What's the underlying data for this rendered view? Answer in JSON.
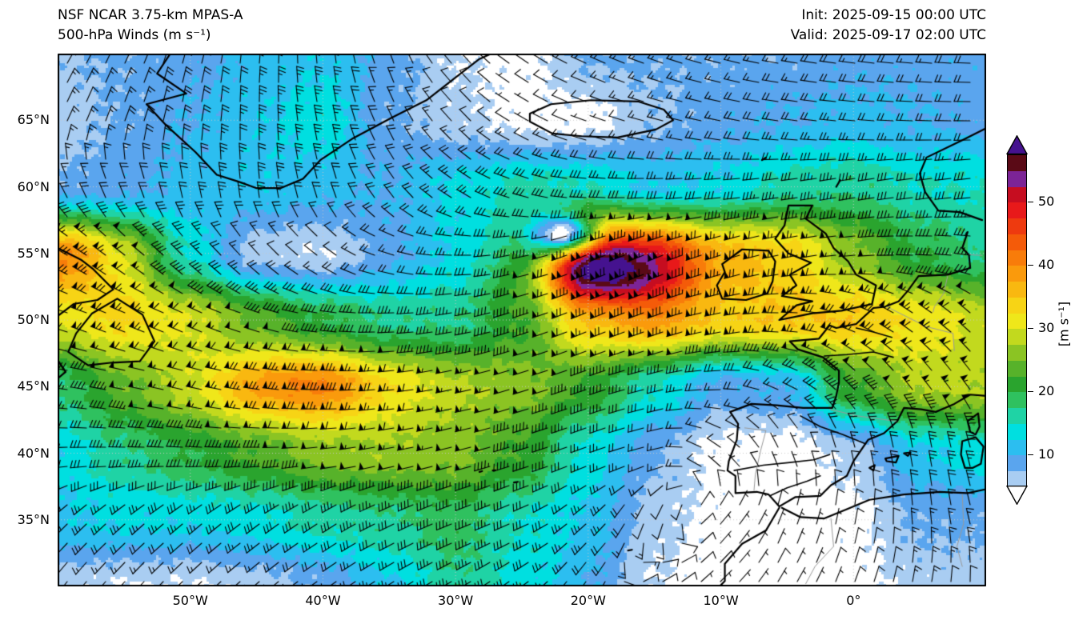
{
  "header": {
    "title_line1": "NSF NCAR 3.75-km MPAS-A",
    "title_line2": "500-hPa Winds (m s⁻¹)",
    "init_label": "Init: 2025-09-15 00:00 UTC",
    "valid_label": "Valid: 2025-09-17 02:00 UTC"
  },
  "axes": {
    "x_ticks": [
      {
        "label": "50°W",
        "lon": -50
      },
      {
        "label": "40°W",
        "lon": -40
      },
      {
        "label": "30°W",
        "lon": -30
      },
      {
        "label": "20°W",
        "lon": -20
      },
      {
        "label": "10°W",
        "lon": -10
      },
      {
        "label": "0°",
        "lon": 0
      }
    ],
    "y_ticks": [
      {
        "label": "65°N",
        "lat": 65
      },
      {
        "label": "60°N",
        "lat": 60
      },
      {
        "label": "55°N",
        "lat": 55
      },
      {
        "label": "50°N",
        "lat": 50
      },
      {
        "label": "45°N",
        "lat": 45
      },
      {
        "label": "40°N",
        "lat": 40
      },
      {
        "label": "35°N",
        "lat": 35
      }
    ],
    "lon_range": [
      -60,
      10
    ],
    "lat_range": [
      30,
      70
    ],
    "gridline_color": "#c9c9c9"
  },
  "colorbar": {
    "unit_label": "[m s⁻¹]",
    "ticks": [
      10,
      20,
      30,
      40,
      50
    ],
    "vmin": 5,
    "step": 2.5,
    "under_color": "#ffffff",
    "over_color": "#45128f",
    "colors": [
      "#a9cdf2",
      "#5aa5ee",
      "#2cbef0",
      "#00dfe0",
      "#1fd3a5",
      "#2fc15f",
      "#2aa42e",
      "#57b22a",
      "#8bc423",
      "#c2d91e",
      "#efe71a",
      "#f7d415",
      "#f9b810",
      "#fa9a0c",
      "#f87c0a",
      "#f45b09",
      "#ee3a0f",
      "#e8191a",
      "#c60d20",
      "#7c2496",
      "#5a0a16"
    ]
  },
  "chart_data": {
    "type": "heatmap",
    "subtype": "wind-speed-fill-with-barbs",
    "title": "NSF NCAR 3.75-km MPAS-A 500-hPa Winds",
    "units": "m s⁻¹",
    "legend_position": "right-colorbar",
    "grid_on": true,
    "grid_lons": [
      -60,
      -55,
      -50,
      -45,
      -40,
      -35,
      -30,
      -25,
      -20,
      -15,
      -10,
      -5,
      0,
      5,
      10
    ],
    "grid_lats": [
      70,
      65,
      60,
      55,
      50,
      45,
      40,
      35,
      30
    ],
    "speed_ms": [
      [
        7,
        8,
        9,
        11,
        12,
        9,
        5,
        4,
        8,
        8,
        8,
        8,
        9,
        9,
        9
      ],
      [
        6,
        8,
        10,
        12,
        14,
        8,
        6,
        4,
        4,
        7,
        9,
        10,
        11,
        10,
        9
      ],
      [
        8,
        9,
        11,
        12,
        11,
        10,
        13,
        16,
        15,
        12,
        13,
        16,
        17,
        15,
        15
      ],
      [
        36,
        25,
        14,
        6,
        5,
        9,
        13,
        18,
        48,
        44,
        36,
        34,
        26,
        20,
        17
      ],
      [
        30,
        33,
        30,
        24,
        20,
        17,
        17,
        22,
        34,
        38,
        34,
        35,
        35,
        32,
        29
      ],
      [
        18,
        24,
        28,
        34,
        36,
        31,
        28,
        26,
        22,
        15,
        9,
        10,
        22,
        28,
        28
      ],
      [
        13,
        17,
        20,
        23,
        26,
        27,
        26,
        22,
        14,
        8,
        4,
        3,
        6,
        12,
        14
      ],
      [
        12,
        13,
        13,
        14,
        16,
        17,
        19,
        15,
        12,
        6,
        4,
        3,
        4,
        8,
        8
      ],
      [
        6,
        5,
        5,
        6,
        8,
        12,
        17,
        14,
        10,
        5,
        3,
        3,
        4,
        6,
        6
      ]
    ],
    "wind_from_deg": [
      [
        30,
        25,
        15,
        5,
        355,
        340,
        320,
        305,
        295,
        290,
        285,
        280,
        278,
        275,
        272
      ],
      [
        25,
        20,
        10,
        0,
        350,
        335,
        318,
        300,
        290,
        285,
        282,
        278,
        275,
        272,
        270
      ],
      [
        335,
        340,
        350,
        355,
        345,
        325,
        305,
        288,
        275,
        268,
        265,
        262,
        260,
        262,
        264
      ],
      [
        300,
        308,
        315,
        318,
        308,
        288,
        272,
        258,
        248,
        248,
        252,
        258,
        265,
        272,
        278
      ],
      [
        288,
        292,
        294,
        288,
        278,
        268,
        260,
        252,
        248,
        250,
        258,
        272,
        290,
        305,
        312
      ],
      [
        278,
        281,
        283,
        279,
        271,
        264,
        258,
        253,
        251,
        256,
        268,
        295,
        315,
        322,
        324
      ],
      [
        268,
        271,
        273,
        270,
        264,
        259,
        256,
        253,
        250,
        255,
        305,
        335,
        345,
        350,
        345
      ],
      [
        225,
        228,
        230,
        233,
        237,
        244,
        248,
        246,
        228,
        200,
        40,
        20,
        10,
        355,
        345
      ],
      [
        218,
        222,
        226,
        230,
        235,
        238,
        240,
        235,
        215,
        60,
        45,
        30,
        20,
        10,
        0
      ]
    ],
    "local_features": [
      {
        "name": "jet-streak-core",
        "lon": -18.5,
        "lat": 53.4,
        "amp": 16,
        "slon": 4.0,
        "slat": 1.7
      },
      {
        "name": "cyclone-calm-eye",
        "lon": -21.5,
        "lat": 56.3,
        "amp": -34,
        "slon": 1.6,
        "slat": 1.0
      },
      {
        "name": "midatlantic-streak",
        "lon": -42,
        "lat": 45,
        "amp": 5,
        "slon": 5.0,
        "slat": 1.8
      },
      {
        "name": "west-edge-streak",
        "lon": -57,
        "lat": 54.5,
        "amp": 6,
        "slon": 3.0,
        "slat": 2.0
      }
    ],
    "max_wind": {
      "value_ms": 58,
      "lon": -18.5,
      "lat": 53.4
    },
    "barb_convention": {
      "pennant_ms": 25,
      "full_barb_ms": 5,
      "half_barb_ms": 2.5,
      "calm_circle_below_ms": 2
    }
  }
}
